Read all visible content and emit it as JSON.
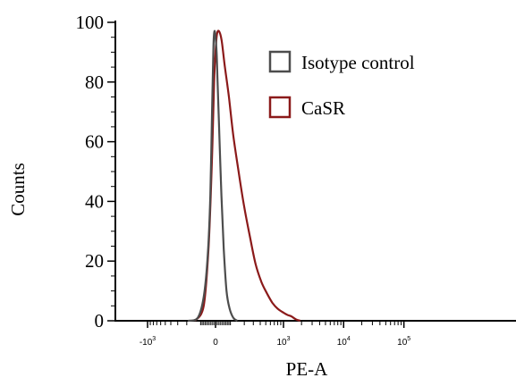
{
  "chart_data": {
    "type": "line",
    "title": "",
    "xlabel": "PE-A",
    "ylabel": "Counts",
    "x_scale": "biexponential",
    "xlim": [
      -1900,
      140000
    ],
    "ylim": [
      0,
      100
    ],
    "y_ticks": [
      0,
      20,
      40,
      60,
      80,
      100
    ],
    "x_ticks": [
      {
        "value": -1000,
        "base": "-10",
        "exp": "3"
      },
      {
        "value": 0,
        "base": "0",
        "exp": ""
      },
      {
        "value": 1000,
        "base": "10",
        "exp": "3"
      },
      {
        "value": 10000,
        "base": "10",
        "exp": "4"
      },
      {
        "value": 100000,
        "base": "10",
        "exp": "5"
      }
    ],
    "grid": false,
    "legend_position": "top-right",
    "series": [
      {
        "name": "Isotype control",
        "color": "#4d4d4d",
        "x": [
          -190,
          -110,
          -70,
          -45,
          -30,
          -20,
          -12,
          -6,
          0,
          6,
          12,
          22,
          34,
          48,
          65,
          85,
          110,
          140
        ],
        "y": [
          0,
          1,
          8,
          22,
          42,
          70,
          92,
          97,
          95,
          90,
          80,
          62,
          42,
          24,
          10,
          4,
          1,
          0
        ]
      },
      {
        "name": "CaSR",
        "color": "#8b1a1a",
        "x": [
          -130,
          -70,
          -40,
          -20,
          -8,
          0,
          8,
          20,
          35,
          55,
          80,
          110,
          150,
          200,
          260,
          330,
          420,
          530,
          650,
          800,
          950,
          1150,
          1350,
          1600,
          1900
        ],
        "y": [
          0,
          5,
          25,
          55,
          80,
          90,
          96,
          97,
          94,
          85,
          75,
          62,
          50,
          38,
          28,
          19,
          13,
          9,
          6,
          4,
          3,
          2,
          1.5,
          0.5,
          0
        ]
      }
    ]
  }
}
